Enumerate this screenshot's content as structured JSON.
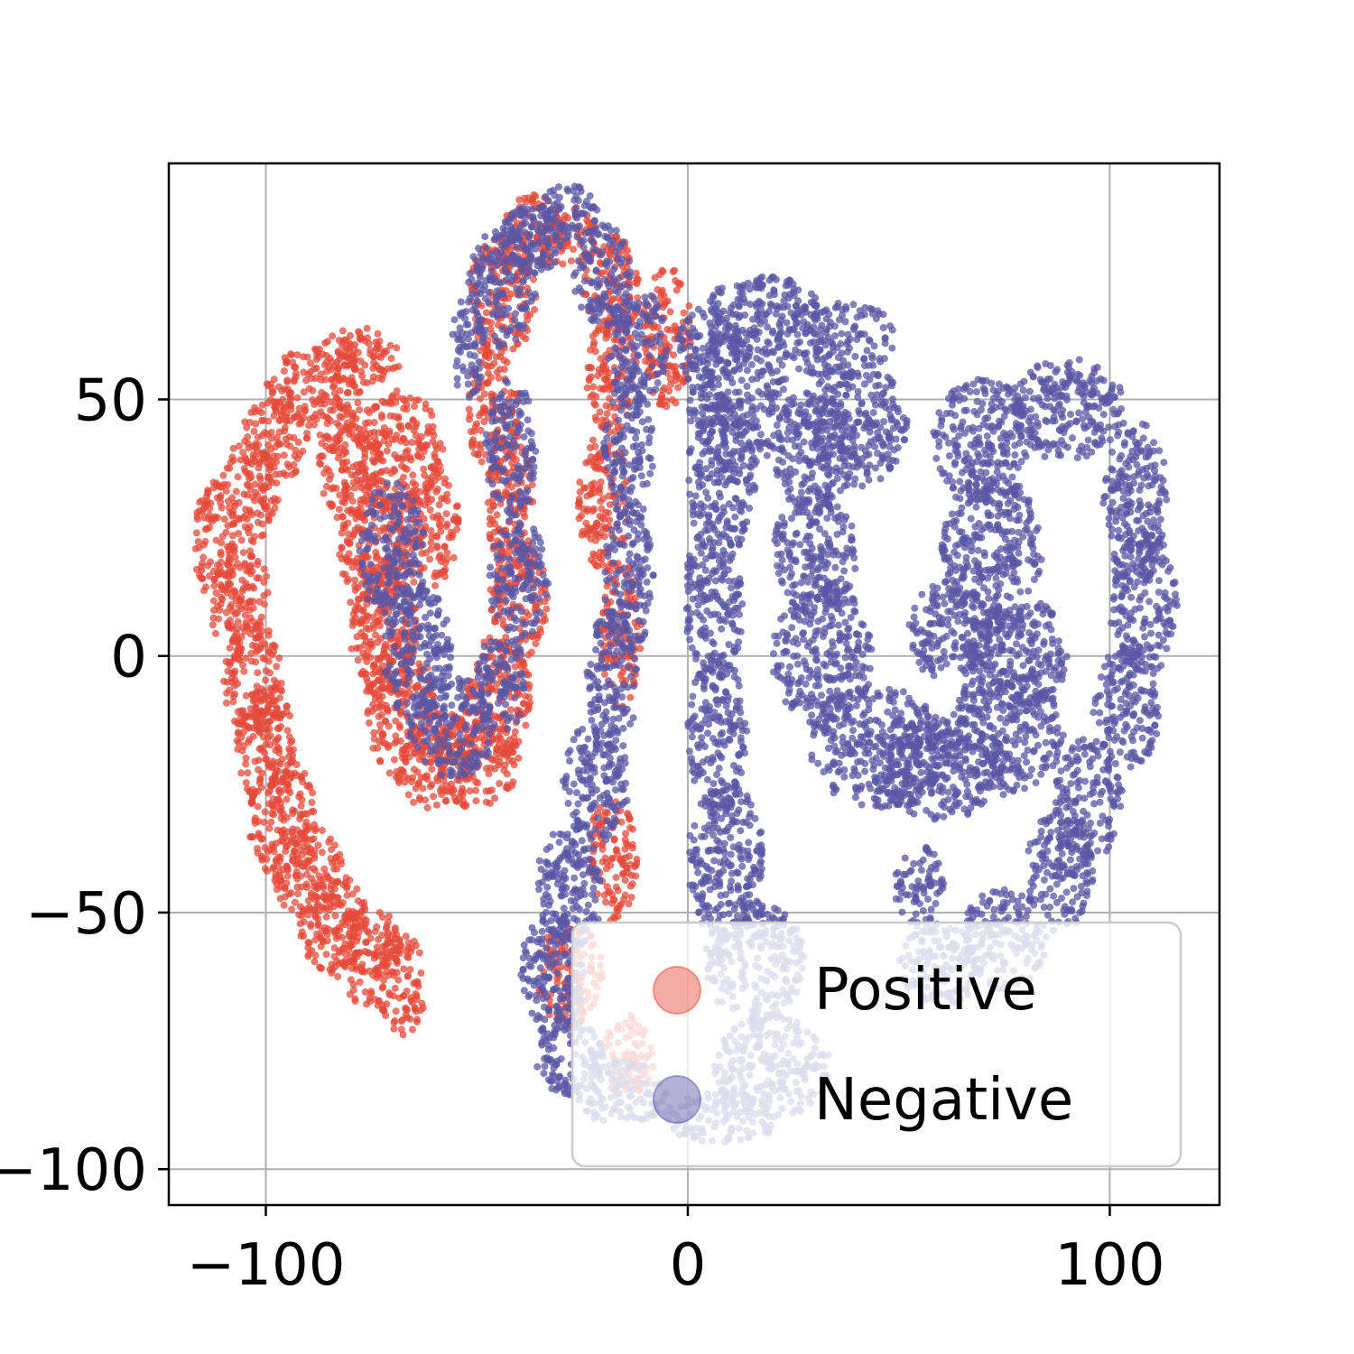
{
  "chart_data": {
    "type": "scatter",
    "title": "",
    "xlabel": "",
    "ylabel": "",
    "xlim": [
      -123,
      126
    ],
    "ylim": [
      -107,
      96
    ],
    "xticks": [
      -100,
      0,
      100
    ],
    "yticks": [
      50,
      0,
      -50,
      -100
    ],
    "xtick_labels": [
      "−100",
      "0",
      "100"
    ],
    "ytick_labels": [
      "50",
      "0",
      "−50",
      "−100"
    ],
    "grid": true,
    "legend_position": "lower-right",
    "series": [
      {
        "name": "Positive",
        "color": "#e64a3a",
        "regions": [
          [
            -112,
            22,
            5,
            12
          ],
          [
            -106,
            10,
            7,
            12
          ],
          [
            -103,
            -5,
            7,
            12
          ],
          [
            -100,
            -18,
            7,
            12
          ],
          [
            -96,
            -32,
            8,
            12
          ],
          [
            -90,
            -42,
            8,
            10
          ],
          [
            -84,
            -52,
            8,
            10
          ],
          [
            -76,
            -58,
            8,
            10
          ],
          [
            -68,
            -64,
            6,
            10
          ],
          [
            -104,
            32,
            7,
            10
          ],
          [
            -98,
            42,
            8,
            8
          ],
          [
            -88,
            52,
            12,
            8
          ],
          [
            -78,
            58,
            10,
            6
          ],
          [
            -80,
            38,
            8,
            12
          ],
          [
            -75,
            20,
            8,
            15
          ],
          [
            -72,
            5,
            8,
            14
          ],
          [
            -68,
            -10,
            8,
            14
          ],
          [
            -60,
            -20,
            10,
            10
          ],
          [
            -50,
            -20,
            10,
            10
          ],
          [
            -68,
            40,
            10,
            12
          ],
          [
            -62,
            25,
            8,
            12
          ],
          [
            -45,
            -8,
            8,
            12
          ],
          [
            -40,
            10,
            7,
            12
          ],
          [
            -42,
            30,
            6,
            14
          ],
          [
            -46,
            48,
            6,
            14
          ],
          [
            -44,
            70,
            8,
            12
          ],
          [
            -36,
            82,
            8,
            8
          ],
          [
            -28,
            82,
            7,
            6
          ],
          [
            -18,
            72,
            7,
            10
          ],
          [
            -18,
            55,
            6,
            12
          ],
          [
            -20,
            30,
            6,
            14
          ],
          [
            -16,
            5,
            5,
            15
          ],
          [
            -18,
            -40,
            6,
            12
          ],
          [
            -28,
            -62,
            8,
            10
          ],
          [
            -5,
            62,
            6,
            14
          ],
          [
            -14,
            -78,
            6,
            8
          ]
        ]
      },
      {
        "name": "Negative",
        "color": "#5957a6",
        "regions": [
          [
            -70,
            20,
            8,
            14
          ],
          [
            -64,
            0,
            8,
            14
          ],
          [
            -56,
            -14,
            10,
            10
          ],
          [
            -52,
            60,
            4,
            10
          ],
          [
            -44,
            72,
            8,
            12
          ],
          [
            -36,
            82,
            8,
            8
          ],
          [
            -28,
            86,
            7,
            6
          ],
          [
            -20,
            74,
            7,
            10
          ],
          [
            -12,
            60,
            7,
            12
          ],
          [
            -42,
            40,
            6,
            14
          ],
          [
            -40,
            15,
            7,
            12
          ],
          [
            -44,
            -5,
            6,
            10
          ],
          [
            -14,
            40,
            6,
            14
          ],
          [
            -14,
            15,
            6,
            14
          ],
          [
            -18,
            -5,
            6,
            14
          ],
          [
            -22,
            -25,
            8,
            12
          ],
          [
            -28,
            -45,
            8,
            12
          ],
          [
            -32,
            -62,
            8,
            12
          ],
          [
            -28,
            -78,
            8,
            8
          ],
          [
            -16,
            -85,
            12,
            6
          ],
          [
            5,
            60,
            8,
            8
          ],
          [
            8,
            35,
            8,
            16
          ],
          [
            6,
            10,
            7,
            16
          ],
          [
            7,
            -15,
            7,
            16
          ],
          [
            9,
            -40,
            9,
            16
          ],
          [
            16,
            -60,
            12,
            12
          ],
          [
            20,
            -80,
            14,
            10
          ],
          [
            8,
            -90,
            14,
            5
          ],
          [
            12,
            50,
            12,
            14
          ],
          [
            18,
            68,
            14,
            6
          ],
          [
            35,
            62,
            14,
            8
          ],
          [
            40,
            45,
            12,
            12
          ],
          [
            30,
            40,
            10,
            12
          ],
          [
            30,
            20,
            10,
            12
          ],
          [
            32,
            0,
            12,
            14
          ],
          [
            45,
            -18,
            16,
            12
          ],
          [
            60,
            -22,
            16,
            10
          ],
          [
            75,
            -15,
            14,
            12
          ],
          [
            78,
            0,
            12,
            12
          ],
          [
            72,
            20,
            12,
            16
          ],
          [
            70,
            42,
            12,
            12
          ],
          [
            90,
            48,
            14,
            10
          ],
          [
            106,
            30,
            8,
            16
          ],
          [
            108,
            10,
            8,
            14
          ],
          [
            104,
            -10,
            8,
            12
          ],
          [
            95,
            -28,
            8,
            12
          ],
          [
            88,
            -42,
            8,
            12
          ],
          [
            75,
            -55,
            10,
            10
          ],
          [
            60,
            -60,
            10,
            8
          ],
          [
            55,
            -45,
            6,
            8
          ],
          [
            62,
            5,
            10,
            10
          ]
        ]
      }
    ],
    "legend": [
      {
        "label": "Positive",
        "color": "#e64a3a"
      },
      {
        "label": "Negative",
        "color": "#5957a6"
      }
    ]
  }
}
